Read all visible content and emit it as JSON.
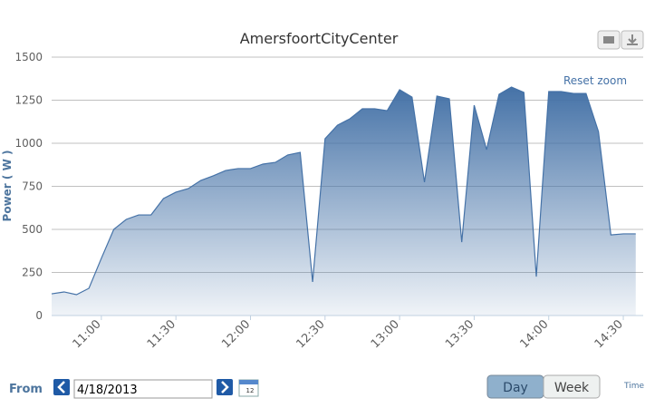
{
  "chart_data": {
    "type": "area",
    "title": "AmersfoortCityCenter",
    "y_label": "Power ( W )",
    "x_label": "Time",
    "reset_zoom": "Reset zoom",
    "x": [
      640,
      645,
      650,
      655,
      660,
      665,
      670,
      675,
      680,
      685,
      690,
      695,
      700,
      705,
      710,
      715,
      720,
      725,
      730,
      735,
      740,
      745,
      750,
      755,
      760,
      765,
      770,
      775,
      780,
      785,
      790,
      795,
      800,
      805,
      810,
      815,
      820,
      825,
      830,
      835,
      840,
      845,
      850,
      855,
      860,
      865,
      870,
      875
    ],
    "xlim": [
      640,
      878
    ],
    "xticks": [
      {
        "value": 660,
        "label": "11:00"
      },
      {
        "value": 690,
        "label": "11:30"
      },
      {
        "value": 720,
        "label": "12:00"
      },
      {
        "value": 750,
        "label": "12:30"
      },
      {
        "value": 780,
        "label": "13:00"
      },
      {
        "value": 810,
        "label": "13:30"
      },
      {
        "value": 840,
        "label": "14:00"
      },
      {
        "value": 870,
        "label": "14:30"
      }
    ],
    "ylim": [
      0,
      1500
    ],
    "yticks": [
      0,
      250,
      500,
      750,
      1000,
      1250,
      1500
    ],
    "grid": true,
    "series": [
      {
        "color": "#4572a7",
        "values": [
          126,
          137,
          121,
          158,
          332,
          500,
          558,
          584,
          584,
          679,
          716,
          737,
          784,
          811,
          842,
          853,
          853,
          879,
          889,
          932,
          947,
          195,
          1026,
          1105,
          1142,
          1200,
          1200,
          1189,
          1311,
          1268,
          774,
          1274,
          1258,
          426,
          1221,
          963,
          1284,
          1326,
          1295,
          226,
          1300,
          1300,
          1289,
          1289,
          1068,
          468,
          474,
          474
        ]
      }
    ]
  },
  "ui": {
    "from_label": "From",
    "date": "4/18/2013",
    "calendar_day": "12",
    "day_button": "Day",
    "week_button": "Week"
  }
}
